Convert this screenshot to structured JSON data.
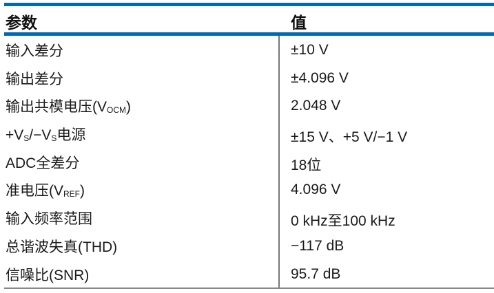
{
  "table": {
    "headers": [
      "参数",
      "值"
    ],
    "rows": [
      {
        "param": [
          {
            "t": "输入差分"
          }
        ],
        "value": "±10 V"
      },
      {
        "param": [
          {
            "t": "输出差分"
          }
        ],
        "value": "±4.096 V"
      },
      {
        "param": [
          {
            "t": "输出共模电压(V"
          },
          {
            "sub": "OCM"
          },
          {
            "t": ")"
          }
        ],
        "value": "2.048 V"
      },
      {
        "param": [
          {
            "t": "+V"
          },
          {
            "sub": "S"
          },
          {
            "t": "/−V"
          },
          {
            "sub": "S"
          },
          {
            "t": "电源"
          }
        ],
        "value": "±15 V、+5 V/−1 V"
      },
      {
        "param": [
          {
            "t": "ADC全差分"
          }
        ],
        "value": "18位"
      },
      {
        "param": [
          {
            "t": "准电压(V"
          },
          {
            "sub": "REF"
          },
          {
            "t": ")"
          }
        ],
        "value": "4.096 V"
      },
      {
        "param": [
          {
            "t": "输入频率范围"
          }
        ],
        "value": "0 kHz至100 kHz"
      },
      {
        "param": [
          {
            "t": "总谐波失真(THD)"
          }
        ],
        "value": "−117 dB"
      },
      {
        "param": [
          {
            "t": "信噪比(SNR)"
          }
        ],
        "value": "95.7 dB"
      }
    ]
  },
  "colors": {
    "rule": "#0068b5",
    "divider": "#777777"
  }
}
